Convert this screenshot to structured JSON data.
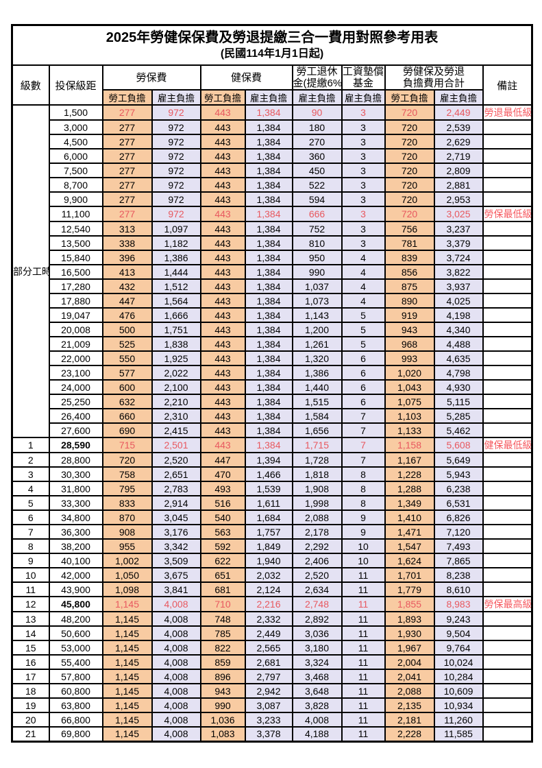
{
  "title": "2025年勞健保保費及勞退提繳三合一費用對照參考用表",
  "subtitle": "(民國114年1月1日起)",
  "colors": {
    "employee_col_bg": "#f8cba2",
    "employer_col_bg": "#e4e2f3",
    "highlight_value_red": "#e8585f",
    "note_red": "#f6595f",
    "border": "#000000"
  },
  "table": {
    "header": {
      "level": "級數",
      "bracket": "投保級距",
      "labor_ins": "勞保費",
      "health_ins": "健保費",
      "pension_line1": "勞工退休",
      "pension_line2": "金(提繳6%)",
      "wage_fund_line1": "工資墊償",
      "wage_fund_line2": "基金",
      "total_line1": "勞健保及勞退",
      "total_line2": "負擔費用合計",
      "note": "備註",
      "employee_label": "勞工負擔",
      "employer_label": "雇主負擔"
    },
    "value_column_kinds": [
      "emp",
      "er",
      "emp",
      "er",
      "er",
      "er",
      "emp",
      "er"
    ],
    "part_time": {
      "label": "部分工時",
      "rowspan": 23
    },
    "rows": [
      {
        "level": "",
        "bracket": "1,500",
        "values": [
          "277",
          "972",
          "443",
          "1,384",
          "90",
          "3",
          "720",
          "2,449"
        ],
        "note": "勞退最低級距",
        "red": true,
        "big": false
      },
      {
        "level": "",
        "bracket": "3,000",
        "values": [
          "277",
          "972",
          "443",
          "1,384",
          "180",
          "3",
          "720",
          "2,539"
        ],
        "note": "",
        "red": false,
        "big": false
      },
      {
        "level": "",
        "bracket": "4,500",
        "values": [
          "277",
          "972",
          "443",
          "1,384",
          "270",
          "3",
          "720",
          "2,629"
        ],
        "note": "",
        "red": false,
        "big": false
      },
      {
        "level": "",
        "bracket": "6,000",
        "values": [
          "277",
          "972",
          "443",
          "1,384",
          "360",
          "3",
          "720",
          "2,719"
        ],
        "note": "",
        "red": false,
        "big": false
      },
      {
        "level": "",
        "bracket": "7,500",
        "values": [
          "277",
          "972",
          "443",
          "1,384",
          "450",
          "3",
          "720",
          "2,809"
        ],
        "note": "",
        "red": false,
        "big": false
      },
      {
        "level": "",
        "bracket": "8,700",
        "values": [
          "277",
          "972",
          "443",
          "1,384",
          "522",
          "3",
          "720",
          "2,881"
        ],
        "note": "",
        "red": false,
        "big": false
      },
      {
        "level": "",
        "bracket": "9,900",
        "values": [
          "277",
          "972",
          "443",
          "1,384",
          "594",
          "3",
          "720",
          "2,953"
        ],
        "note": "",
        "red": false,
        "big": false
      },
      {
        "level": "",
        "bracket": "11,100",
        "values": [
          "277",
          "972",
          "443",
          "1,384",
          "666",
          "3",
          "720",
          "3,025"
        ],
        "note": "勞保最低級距",
        "red": true,
        "big": false
      },
      {
        "level": "",
        "bracket": "12,540",
        "values": [
          "313",
          "1,097",
          "443",
          "1,384",
          "752",
          "3",
          "756",
          "3,237"
        ],
        "note": "",
        "red": false,
        "big": false
      },
      {
        "level": "",
        "bracket": "13,500",
        "values": [
          "338",
          "1,182",
          "443",
          "1,384",
          "810",
          "3",
          "781",
          "3,379"
        ],
        "note": "",
        "red": false,
        "big": false
      },
      {
        "level": "",
        "bracket": "15,840",
        "values": [
          "396",
          "1,386",
          "443",
          "1,384",
          "950",
          "4",
          "839",
          "3,724"
        ],
        "note": "",
        "red": false,
        "big": false
      },
      {
        "level": "",
        "bracket": "16,500",
        "values": [
          "413",
          "1,444",
          "443",
          "1,384",
          "990",
          "4",
          "856",
          "3,822"
        ],
        "note": "",
        "red": false,
        "big": false
      },
      {
        "level": "",
        "bracket": "17,280",
        "values": [
          "432",
          "1,512",
          "443",
          "1,384",
          "1,037",
          "4",
          "875",
          "3,937"
        ],
        "note": "",
        "red": false,
        "big": false
      },
      {
        "level": "",
        "bracket": "17,880",
        "values": [
          "447",
          "1,564",
          "443",
          "1,384",
          "1,073",
          "4",
          "890",
          "4,025"
        ],
        "note": "",
        "red": false,
        "big": false
      },
      {
        "level": "",
        "bracket": "19,047",
        "values": [
          "476",
          "1,666",
          "443",
          "1,384",
          "1,143",
          "5",
          "919",
          "4,198"
        ],
        "note": "",
        "red": false,
        "big": false
      },
      {
        "level": "",
        "bracket": "20,008",
        "values": [
          "500",
          "1,751",
          "443",
          "1,384",
          "1,200",
          "5",
          "943",
          "4,340"
        ],
        "note": "",
        "red": false,
        "big": false
      },
      {
        "level": "",
        "bracket": "21,009",
        "values": [
          "525",
          "1,838",
          "443",
          "1,384",
          "1,261",
          "5",
          "968",
          "4,488"
        ],
        "note": "",
        "red": false,
        "big": false
      },
      {
        "level": "",
        "bracket": "22,000",
        "values": [
          "550",
          "1,925",
          "443",
          "1,384",
          "1,320",
          "6",
          "993",
          "4,635"
        ],
        "note": "",
        "red": false,
        "big": false
      },
      {
        "level": "",
        "bracket": "23,100",
        "values": [
          "577",
          "2,022",
          "443",
          "1,384",
          "1,386",
          "6",
          "1,020",
          "4,798"
        ],
        "note": "",
        "red": false,
        "big": false
      },
      {
        "level": "",
        "bracket": "24,000",
        "values": [
          "600",
          "2,100",
          "443",
          "1,384",
          "1,440",
          "6",
          "1,043",
          "4,930"
        ],
        "note": "",
        "red": false,
        "big": false
      },
      {
        "level": "",
        "bracket": "25,250",
        "values": [
          "632",
          "2,210",
          "443",
          "1,384",
          "1,515",
          "6",
          "1,075",
          "5,115"
        ],
        "note": "",
        "red": false,
        "big": false
      },
      {
        "level": "",
        "bracket": "26,400",
        "values": [
          "660",
          "2,310",
          "443",
          "1,384",
          "1,584",
          "7",
          "1,103",
          "5,285"
        ],
        "note": "",
        "red": false,
        "big": false
      },
      {
        "level": "",
        "bracket": "27,600",
        "values": [
          "690",
          "2,415",
          "443",
          "1,384",
          "1,656",
          "7",
          "1,133",
          "5,462"
        ],
        "note": "",
        "red": false,
        "big": false
      },
      {
        "level": "1",
        "bracket": "28,590",
        "values": [
          "715",
          "2,501",
          "443",
          "1,384",
          "1,715",
          "7",
          "1,158",
          "5,608"
        ],
        "note": "健保最低級距",
        "red": true,
        "big": true
      },
      {
        "level": "2",
        "bracket": "28,800",
        "values": [
          "720",
          "2,520",
          "447",
          "1,394",
          "1,728",
          "7",
          "1,167",
          "5,649"
        ],
        "note": "",
        "red": false,
        "big": false
      },
      {
        "level": "3",
        "bracket": "30,300",
        "values": [
          "758",
          "2,651",
          "470",
          "1,466",
          "1,818",
          "8",
          "1,228",
          "5,943"
        ],
        "note": "",
        "red": false,
        "big": false
      },
      {
        "level": "4",
        "bracket": "31,800",
        "values": [
          "795",
          "2,783",
          "493",
          "1,539",
          "1,908",
          "8",
          "1,288",
          "6,238"
        ],
        "note": "",
        "red": false,
        "big": false
      },
      {
        "level": "5",
        "bracket": "33,300",
        "values": [
          "833",
          "2,914",
          "516",
          "1,611",
          "1,998",
          "8",
          "1,349",
          "6,531"
        ],
        "note": "",
        "red": false,
        "big": false
      },
      {
        "level": "6",
        "bracket": "34,800",
        "values": [
          "870",
          "3,045",
          "540",
          "1,684",
          "2,088",
          "9",
          "1,410",
          "6,826"
        ],
        "note": "",
        "red": false,
        "big": false
      },
      {
        "level": "7",
        "bracket": "36,300",
        "values": [
          "908",
          "3,176",
          "563",
          "1,757",
          "2,178",
          "9",
          "1,471",
          "7,120"
        ],
        "note": "",
        "red": false,
        "big": false
      },
      {
        "level": "8",
        "bracket": "38,200",
        "values": [
          "955",
          "3,342",
          "592",
          "1,849",
          "2,292",
          "10",
          "1,547",
          "7,493"
        ],
        "note": "",
        "red": false,
        "big": false
      },
      {
        "level": "9",
        "bracket": "40,100",
        "values": [
          "1,002",
          "3,509",
          "622",
          "1,940",
          "2,406",
          "10",
          "1,624",
          "7,865"
        ],
        "note": "",
        "red": false,
        "big": false
      },
      {
        "level": "10",
        "bracket": "42,000",
        "values": [
          "1,050",
          "3,675",
          "651",
          "2,032",
          "2,520",
          "11",
          "1,701",
          "8,238"
        ],
        "note": "",
        "red": false,
        "big": false
      },
      {
        "level": "11",
        "bracket": "43,900",
        "values": [
          "1,098",
          "3,841",
          "681",
          "2,124",
          "2,634",
          "11",
          "1,779",
          "8,610"
        ],
        "note": "",
        "red": false,
        "big": false
      },
      {
        "level": "12",
        "bracket": "45,800",
        "values": [
          "1,145",
          "4,008",
          "710",
          "2,216",
          "2,748",
          "11",
          "1,855",
          "8,983"
        ],
        "note": "勞保最高級距",
        "red": true,
        "big": true
      },
      {
        "level": "13",
        "bracket": "48,200",
        "values": [
          "1,145",
          "4,008",
          "748",
          "2,332",
          "2,892",
          "11",
          "1,893",
          "9,243"
        ],
        "note": "",
        "red": false,
        "big": false
      },
      {
        "level": "14",
        "bracket": "50,600",
        "values": [
          "1,145",
          "4,008",
          "785",
          "2,449",
          "3,036",
          "11",
          "1,930",
          "9,504"
        ],
        "note": "",
        "red": false,
        "big": false
      },
      {
        "level": "15",
        "bracket": "53,000",
        "values": [
          "1,145",
          "4,008",
          "822",
          "2,565",
          "3,180",
          "11",
          "1,967",
          "9,764"
        ],
        "note": "",
        "red": false,
        "big": false
      },
      {
        "level": "16",
        "bracket": "55,400",
        "values": [
          "1,145",
          "4,008",
          "859",
          "2,681",
          "3,324",
          "11",
          "2,004",
          "10,024"
        ],
        "note": "",
        "red": false,
        "big": false
      },
      {
        "level": "17",
        "bracket": "57,800",
        "values": [
          "1,145",
          "4,008",
          "896",
          "2,797",
          "3,468",
          "11",
          "2,041",
          "10,284"
        ],
        "note": "",
        "red": false,
        "big": false
      },
      {
        "level": "18",
        "bracket": "60,800",
        "values": [
          "1,145",
          "4,008",
          "943",
          "2,942",
          "3,648",
          "11",
          "2,088",
          "10,609"
        ],
        "note": "",
        "red": false,
        "big": false
      },
      {
        "level": "19",
        "bracket": "63,800",
        "values": [
          "1,145",
          "4,008",
          "990",
          "3,087",
          "3,828",
          "11",
          "2,135",
          "10,934"
        ],
        "note": "",
        "red": false,
        "big": false
      },
      {
        "level": "20",
        "bracket": "66,800",
        "values": [
          "1,145",
          "4,008",
          "1,036",
          "3,233",
          "4,008",
          "11",
          "2,181",
          "11,260"
        ],
        "note": "",
        "red": false,
        "big": false
      },
      {
        "level": "21",
        "bracket": "69,800",
        "values": [
          "1,145",
          "4,008",
          "1,083",
          "3,378",
          "4,188",
          "11",
          "2,228",
          "11,585"
        ],
        "note": "",
        "red": false,
        "big": false
      }
    ]
  }
}
